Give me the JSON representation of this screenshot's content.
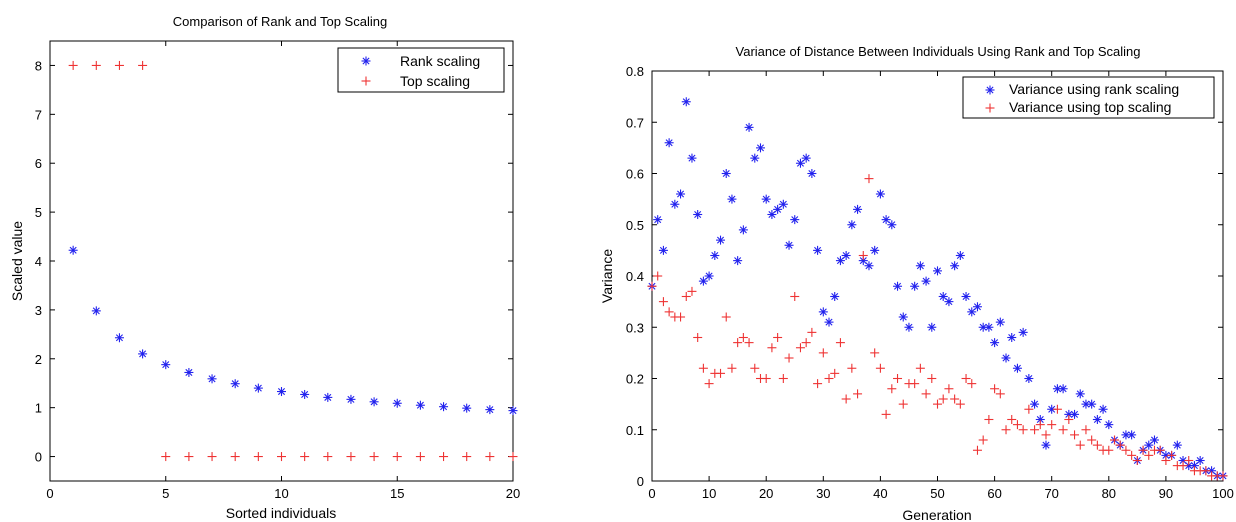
{
  "chart_data": [
    {
      "type": "scatter",
      "title": "Comparison of Rank and Top Scaling",
      "xlabel": "Sorted individuals",
      "ylabel": "Scaled value",
      "xlim": [
        0,
        20
      ],
      "ylim": [
        -0.5,
        8.5
      ],
      "xticks": [
        0,
        5,
        10,
        15,
        20
      ],
      "yticks": [
        0,
        1,
        2,
        3,
        4,
        5,
        6,
        7,
        8
      ],
      "legend_position": "top-right",
      "series": [
        {
          "name": "Rank scaling",
          "marker": "asterisk",
          "color": "#2222ee",
          "points": [
            [
              1,
              4.22
            ],
            [
              2,
              2.98
            ],
            [
              3,
              2.43
            ],
            [
              4,
              2.1
            ],
            [
              5,
              1.88
            ],
            [
              6,
              1.72
            ],
            [
              7,
              1.59
            ],
            [
              8,
              1.49
            ],
            [
              9,
              1.4
            ],
            [
              10,
              1.33
            ],
            [
              11,
              1.27
            ],
            [
              12,
              1.21
            ],
            [
              13,
              1.17
            ],
            [
              14,
              1.12
            ],
            [
              15,
              1.09
            ],
            [
              16,
              1.05
            ],
            [
              17,
              1.02
            ],
            [
              18,
              0.99
            ],
            [
              19,
              0.96
            ],
            [
              20,
              0.94
            ]
          ]
        },
        {
          "name": "Top scaling",
          "marker": "plus",
          "color": "#ee3333",
          "points": [
            [
              1,
              8
            ],
            [
              2,
              8
            ],
            [
              3,
              8
            ],
            [
              4,
              8
            ],
            [
              5,
              0
            ],
            [
              6,
              0
            ],
            [
              7,
              0
            ],
            [
              8,
              0
            ],
            [
              9,
              0
            ],
            [
              10,
              0
            ],
            [
              11,
              0
            ],
            [
              12,
              0
            ],
            [
              13,
              0
            ],
            [
              14,
              0
            ],
            [
              15,
              0
            ],
            [
              16,
              0
            ],
            [
              17,
              0
            ],
            [
              18,
              0
            ],
            [
              19,
              0
            ],
            [
              20,
              0
            ]
          ]
        }
      ]
    },
    {
      "type": "scatter",
      "title": "Variance of Distance Between Individuals Using Rank and Top Scaling",
      "xlabel": "Generation",
      "ylabel": "Variance",
      "xlim": [
        0,
        100
      ],
      "ylim": [
        0,
        0.8
      ],
      "xticks": [
        0,
        10,
        20,
        30,
        40,
        50,
        60,
        70,
        80,
        90,
        100
      ],
      "yticks": [
        0,
        0.1,
        0.2,
        0.3,
        0.4,
        0.5,
        0.6,
        0.7,
        0.8
      ],
      "legend_position": "top-right",
      "series": [
        {
          "name": "Variance using rank scaling",
          "marker": "asterisk",
          "color": "#2222ee",
          "points": [
            [
              0,
              0.38
            ],
            [
              1,
              0.51
            ],
            [
              2,
              0.45
            ],
            [
              3,
              0.66
            ],
            [
              4,
              0.54
            ],
            [
              5,
              0.56
            ],
            [
              6,
              0.74
            ],
            [
              7,
              0.63
            ],
            [
              8,
              0.52
            ],
            [
              9,
              0.39
            ],
            [
              10,
              0.4
            ],
            [
              11,
              0.44
            ],
            [
              12,
              0.47
            ],
            [
              13,
              0.6
            ],
            [
              14,
              0.55
            ],
            [
              15,
              0.43
            ],
            [
              16,
              0.49
            ],
            [
              17,
              0.69
            ],
            [
              18,
              0.63
            ],
            [
              19,
              0.65
            ],
            [
              20,
              0.55
            ],
            [
              21,
              0.52
            ],
            [
              22,
              0.53
            ],
            [
              23,
              0.54
            ],
            [
              24,
              0.46
            ],
            [
              25,
              0.51
            ],
            [
              26,
              0.62
            ],
            [
              27,
              0.63
            ],
            [
              28,
              0.6
            ],
            [
              29,
              0.45
            ],
            [
              30,
              0.33
            ],
            [
              31,
              0.31
            ],
            [
              32,
              0.36
            ],
            [
              33,
              0.43
            ],
            [
              34,
              0.44
            ],
            [
              35,
              0.5
            ],
            [
              36,
              0.53
            ],
            [
              37,
              0.43
            ],
            [
              38,
              0.42
            ],
            [
              39,
              0.45
            ],
            [
              40,
              0.56
            ],
            [
              41,
              0.51
            ],
            [
              42,
              0.5
            ],
            [
              43,
              0.38
            ],
            [
              44,
              0.32
            ],
            [
              45,
              0.3
            ],
            [
              46,
              0.38
            ],
            [
              47,
              0.42
            ],
            [
              48,
              0.39
            ],
            [
              49,
              0.3
            ],
            [
              50,
              0.41
            ],
            [
              51,
              0.36
            ],
            [
              52,
              0.35
            ],
            [
              53,
              0.42
            ],
            [
              54,
              0.44
            ],
            [
              55,
              0.36
            ],
            [
              56,
              0.33
            ],
            [
              57,
              0.34
            ],
            [
              58,
              0.3
            ],
            [
              59,
              0.3
            ],
            [
              60,
              0.27
            ],
            [
              61,
              0.31
            ],
            [
              62,
              0.24
            ],
            [
              63,
              0.28
            ],
            [
              64,
              0.22
            ],
            [
              65,
              0.29
            ],
            [
              66,
              0.2
            ],
            [
              67,
              0.15
            ],
            [
              68,
              0.12
            ],
            [
              69,
              0.07
            ],
            [
              70,
              0.14
            ],
            [
              71,
              0.18
            ],
            [
              72,
              0.18
            ],
            [
              73,
              0.13
            ],
            [
              74,
              0.13
            ],
            [
              75,
              0.17
            ],
            [
              76,
              0.15
            ],
            [
              77,
              0.15
            ],
            [
              78,
              0.12
            ],
            [
              79,
              0.14
            ],
            [
              80,
              0.11
            ],
            [
              81,
              0.08
            ],
            [
              82,
              0.07
            ],
            [
              83,
              0.09
            ],
            [
              84,
              0.09
            ],
            [
              85,
              0.04
            ],
            [
              86,
              0.06
            ],
            [
              87,
              0.07
            ],
            [
              88,
              0.08
            ],
            [
              89,
              0.06
            ],
            [
              90,
              0.05
            ],
            [
              91,
              0.05
            ],
            [
              92,
              0.07
            ],
            [
              93,
              0.04
            ],
            [
              94,
              0.03
            ],
            [
              95,
              0.03
            ],
            [
              96,
              0.04
            ],
            [
              97,
              0.02
            ],
            [
              98,
              0.02
            ],
            [
              99,
              0.01
            ],
            [
              100,
              0.01
            ]
          ]
        },
        {
          "name": "Variance using top scaling",
          "marker": "plus",
          "color": "#ee3333",
          "points": [
            [
              0,
              0.38
            ],
            [
              1,
              0.4
            ],
            [
              2,
              0.35
            ],
            [
              3,
              0.33
            ],
            [
              4,
              0.32
            ],
            [
              5,
              0.32
            ],
            [
              6,
              0.36
            ],
            [
              7,
              0.37
            ],
            [
              8,
              0.28
            ],
            [
              9,
              0.22
            ],
            [
              10,
              0.19
            ],
            [
              11,
              0.21
            ],
            [
              12,
              0.21
            ],
            [
              13,
              0.32
            ],
            [
              14,
              0.22
            ],
            [
              15,
              0.27
            ],
            [
              16,
              0.28
            ],
            [
              17,
              0.27
            ],
            [
              18,
              0.22
            ],
            [
              19,
              0.2
            ],
            [
              20,
              0.2
            ],
            [
              21,
              0.26
            ],
            [
              22,
              0.28
            ],
            [
              23,
              0.2
            ],
            [
              24,
              0.24
            ],
            [
              25,
              0.36
            ],
            [
              26,
              0.26
            ],
            [
              27,
              0.27
            ],
            [
              28,
              0.29
            ],
            [
              29,
              0.19
            ],
            [
              30,
              0.25
            ],
            [
              31,
              0.2
            ],
            [
              32,
              0.21
            ],
            [
              33,
              0.27
            ],
            [
              34,
              0.16
            ],
            [
              35,
              0.22
            ],
            [
              36,
              0.17
            ],
            [
              37,
              0.44
            ],
            [
              38,
              0.59
            ],
            [
              39,
              0.25
            ],
            [
              40,
              0.22
            ],
            [
              41,
              0.13
            ],
            [
              42,
              0.18
            ],
            [
              43,
              0.2
            ],
            [
              44,
              0.15
            ],
            [
              45,
              0.19
            ],
            [
              46,
              0.19
            ],
            [
              47,
              0.22
            ],
            [
              48,
              0.17
            ],
            [
              49,
              0.2
            ],
            [
              50,
              0.15
            ],
            [
              51,
              0.16
            ],
            [
              52,
              0.18
            ],
            [
              53,
              0.16
            ],
            [
              54,
              0.15
            ],
            [
              55,
              0.2
            ],
            [
              56,
              0.19
            ],
            [
              57,
              0.06
            ],
            [
              58,
              0.08
            ],
            [
              59,
              0.12
            ],
            [
              60,
              0.18
            ],
            [
              61,
              0.17
            ],
            [
              62,
              0.1
            ],
            [
              63,
              0.12
            ],
            [
              64,
              0.11
            ],
            [
              65,
              0.1
            ],
            [
              66,
              0.14
            ],
            [
              67,
              0.1
            ],
            [
              68,
              0.11
            ],
            [
              69,
              0.09
            ],
            [
              70,
              0.11
            ],
            [
              71,
              0.14
            ],
            [
              72,
              0.1
            ],
            [
              73,
              0.12
            ],
            [
              74,
              0.09
            ],
            [
              75,
              0.07
            ],
            [
              76,
              0.1
            ],
            [
              77,
              0.08
            ],
            [
              78,
              0.07
            ],
            [
              79,
              0.06
            ],
            [
              80,
              0.06
            ],
            [
              81,
              0.08
            ],
            [
              82,
              0.07
            ],
            [
              83,
              0.06
            ],
            [
              84,
              0.05
            ],
            [
              85,
              0.04
            ],
            [
              86,
              0.06
            ],
            [
              87,
              0.05
            ],
            [
              88,
              0.06
            ],
            [
              89,
              0.06
            ],
            [
              90,
              0.04
            ],
            [
              91,
              0.05
            ],
            [
              92,
              0.03
            ],
            [
              93,
              0.03
            ],
            [
              94,
              0.04
            ],
            [
              95,
              0.02
            ],
            [
              96,
              0.02
            ],
            [
              97,
              0.02
            ],
            [
              98,
              0.01
            ],
            [
              99,
              0.01
            ],
            [
              100,
              0.01
            ]
          ]
        }
      ]
    }
  ]
}
